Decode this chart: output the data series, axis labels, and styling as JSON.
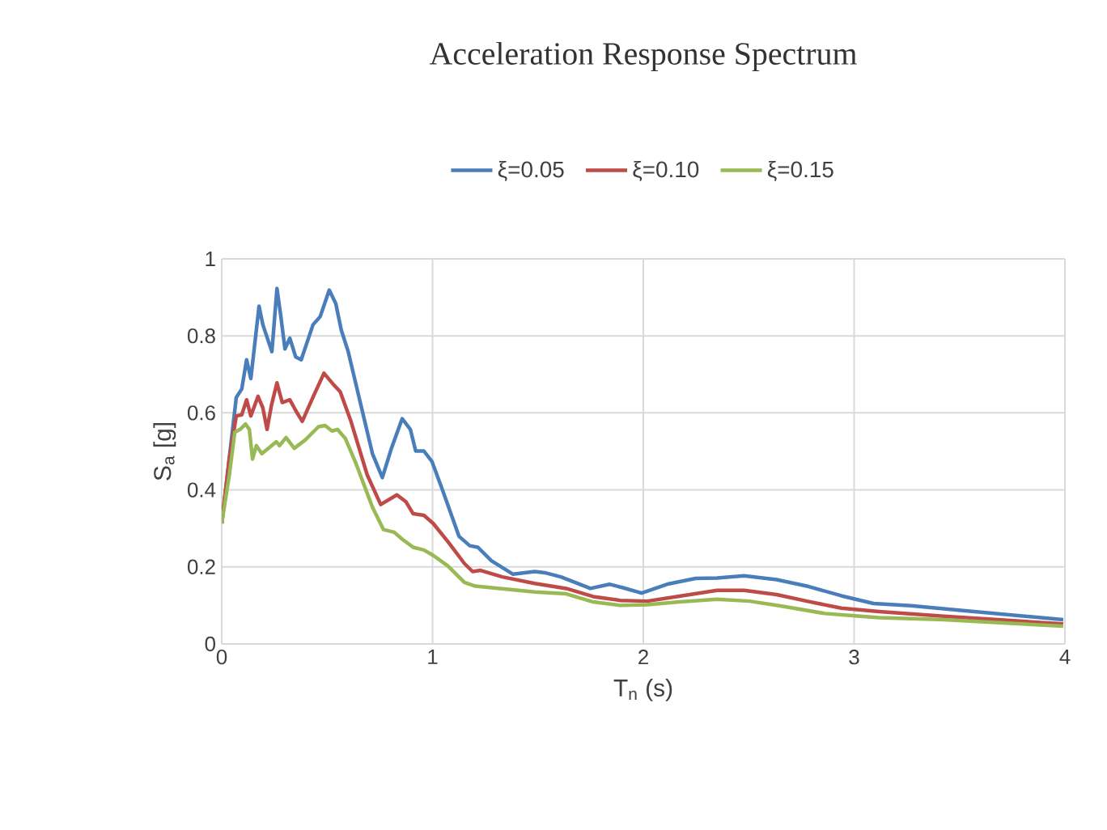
{
  "chart_data": {
    "type": "line",
    "title": "Acceleration Response Spectrum",
    "xlabel": "T$_{n}$ (s)",
    "ylabel": "S$_{a}$ [g]",
    "xlim": [
      0,
      4
    ],
    "ylim": [
      0,
      1
    ],
    "xticks": [
      0,
      1,
      2,
      3,
      4
    ],
    "yticks": [
      0,
      0.2,
      0.4,
      0.6,
      0.8,
      1
    ],
    "grid": true,
    "legend": "top",
    "marker": "none",
    "line_style": "solid",
    "series": [
      {
        "name": "ξ=0.05",
        "color": "#4a7ebb",
        "x": [
          0,
          0.069,
          0.095,
          0.118,
          0.138,
          0.177,
          0.195,
          0.238,
          0.262,
          0.279,
          0.3,
          0.323,
          0.351,
          0.377,
          0.433,
          0.467,
          0.51,
          0.541,
          0.567,
          0.6,
          0.651,
          0.715,
          0.762,
          0.805,
          0.856,
          0.895,
          0.92,
          0.959,
          0.997,
          1.049,
          1.126,
          1.177,
          1.215,
          1.279,
          1.382,
          1.485,
          1.532,
          1.609,
          1.749,
          1.839,
          1.903,
          1.992,
          2.12,
          2.248,
          2.35,
          2.478,
          2.632,
          2.785,
          2.939,
          3.092,
          3.27,
          3.527,
          3.992
        ],
        "values": [
          0.313,
          0.64,
          0.662,
          0.738,
          0.689,
          0.877,
          0.829,
          0.759,
          0.923,
          0.856,
          0.766,
          0.794,
          0.745,
          0.738,
          0.829,
          0.85,
          0.919,
          0.884,
          0.815,
          0.759,
          0.641,
          0.494,
          0.432,
          0.508,
          0.585,
          0.557,
          0.501,
          0.501,
          0.474,
          0.397,
          0.279,
          0.255,
          0.251,
          0.216,
          0.181,
          0.188,
          0.185,
          0.174,
          0.144,
          0.155,
          0.146,
          0.132,
          0.156,
          0.17,
          0.171,
          0.177,
          0.167,
          0.149,
          0.125,
          0.105,
          0.099,
          0.086,
          0.063
        ]
      },
      {
        "name": "ξ=0.10",
        "color": "#be4b48",
        "x": [
          0,
          0.036,
          0.069,
          0.095,
          0.118,
          0.138,
          0.172,
          0.195,
          0.215,
          0.236,
          0.262,
          0.287,
          0.323,
          0.351,
          0.382,
          0.433,
          0.485,
          0.531,
          0.562,
          0.613,
          0.69,
          0.754,
          0.831,
          0.874,
          0.908,
          0.959,
          1.003,
          1.074,
          1.151,
          1.19,
          1.228,
          1.331,
          1.485,
          1.634,
          1.762,
          1.89,
          2.018,
          2.171,
          2.35,
          2.478,
          2.632,
          2.785,
          2.939,
          3.118,
          3.425,
          3.992
        ],
        "values": [
          0.313,
          0.481,
          0.592,
          0.595,
          0.634,
          0.592,
          0.643,
          0.613,
          0.557,
          0.62,
          0.678,
          0.627,
          0.634,
          0.606,
          0.578,
          0.641,
          0.703,
          0.673,
          0.655,
          0.578,
          0.439,
          0.362,
          0.387,
          0.369,
          0.338,
          0.334,
          0.313,
          0.265,
          0.209,
          0.188,
          0.191,
          0.174,
          0.157,
          0.144,
          0.123,
          0.113,
          0.111,
          0.124,
          0.139,
          0.139,
          0.128,
          0.11,
          0.093,
          0.084,
          0.072,
          0.052
        ]
      },
      {
        "name": "ξ=0.15",
        "color": "#98b954",
        "x": [
          0,
          0.036,
          0.062,
          0.087,
          0.113,
          0.131,
          0.146,
          0.164,
          0.19,
          0.228,
          0.259,
          0.274,
          0.305,
          0.344,
          0.395,
          0.459,
          0.49,
          0.523,
          0.549,
          0.587,
          0.638,
          0.715,
          0.767,
          0.818,
          0.856,
          0.908,
          0.959,
          1.003,
          1.074,
          1.151,
          1.203,
          1.485,
          1.634,
          1.762,
          1.89,
          2.018,
          2.171,
          2.35,
          2.504,
          2.657,
          2.862,
          3.118,
          3.425,
          3.992
        ],
        "values": [
          0.313,
          0.439,
          0.55,
          0.557,
          0.571,
          0.557,
          0.48,
          0.515,
          0.494,
          0.511,
          0.525,
          0.515,
          0.536,
          0.508,
          0.529,
          0.564,
          0.567,
          0.553,
          0.557,
          0.533,
          0.467,
          0.355,
          0.297,
          0.29,
          0.272,
          0.251,
          0.244,
          0.23,
          0.202,
          0.16,
          0.15,
          0.135,
          0.13,
          0.109,
          0.1,
          0.102,
          0.109,
          0.116,
          0.111,
          0.098,
          0.079,
          0.068,
          0.063,
          0.046
        ]
      }
    ]
  }
}
